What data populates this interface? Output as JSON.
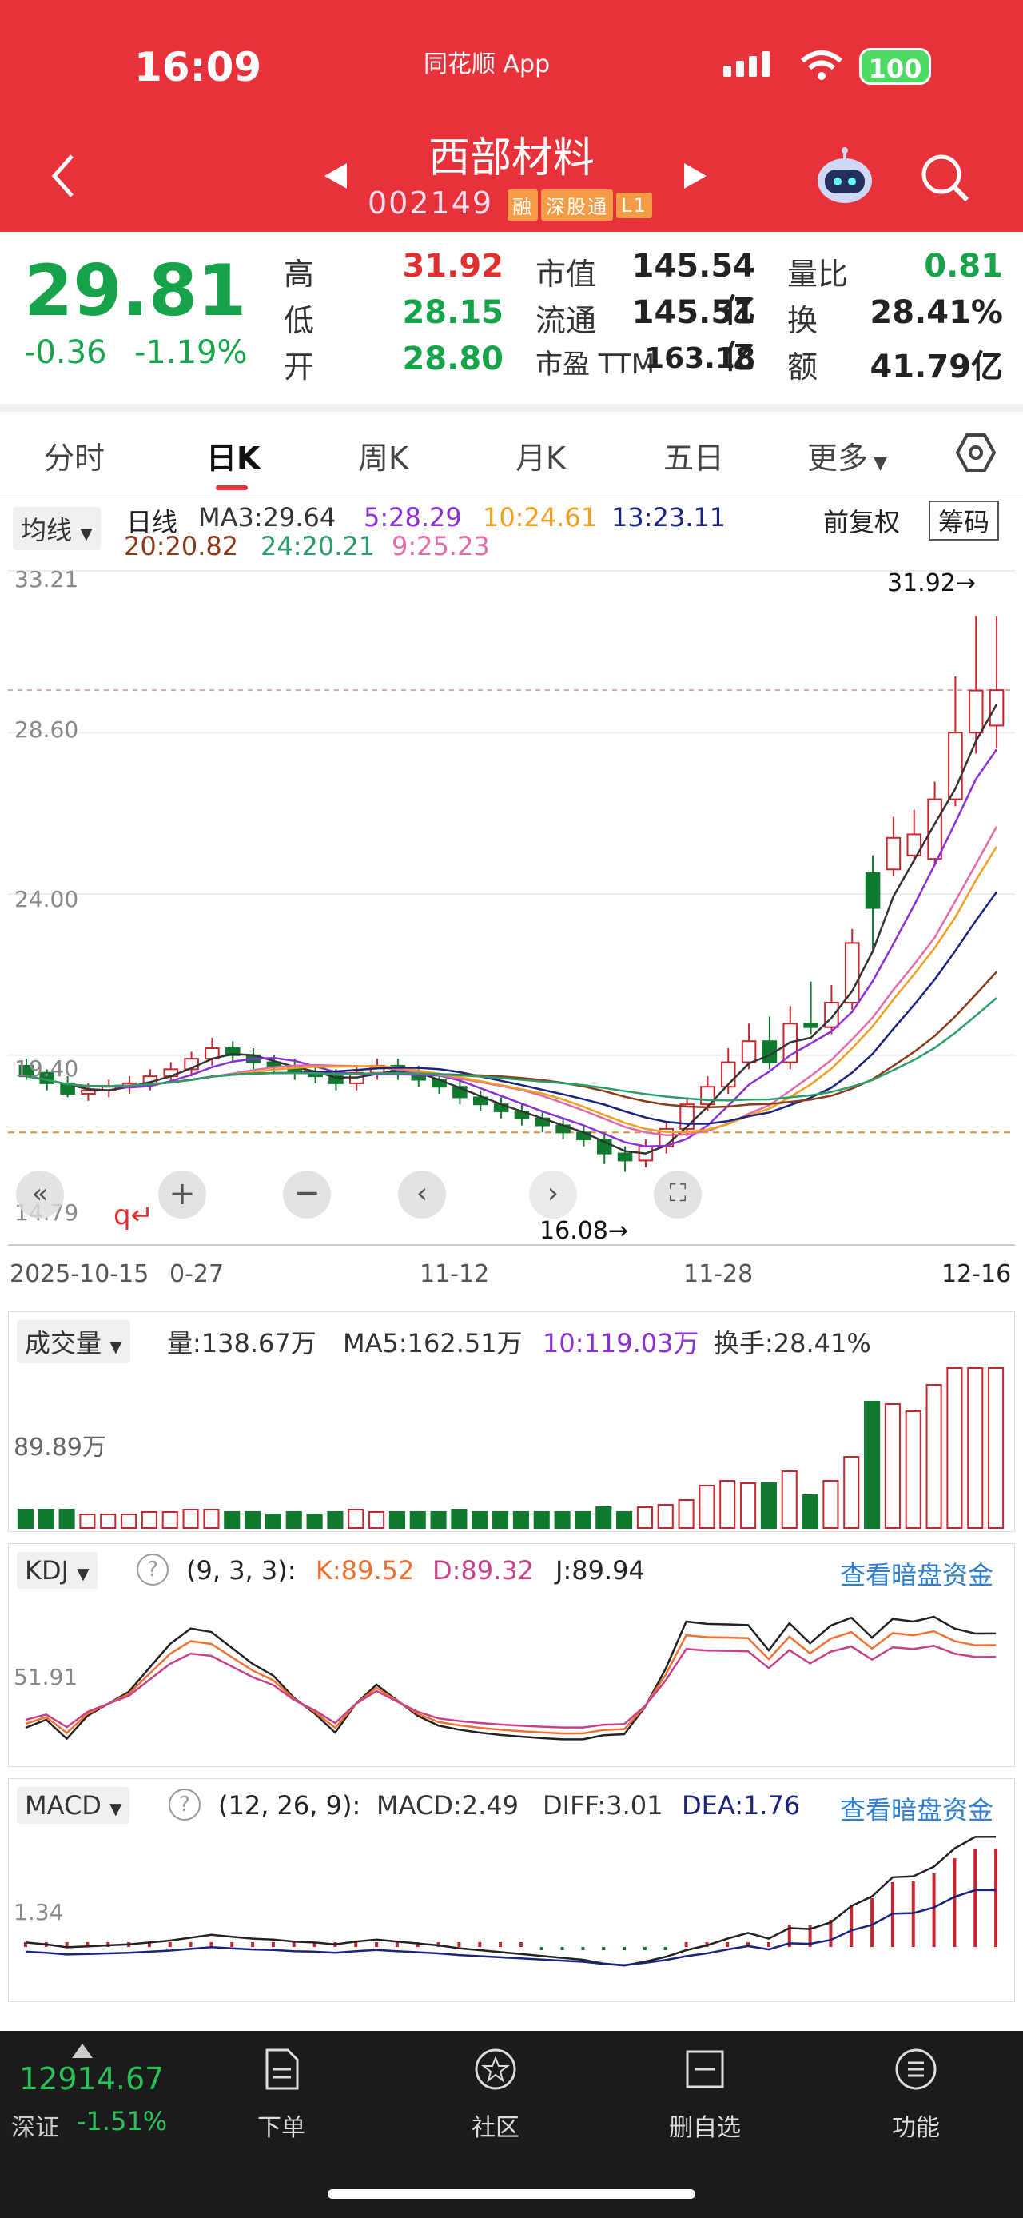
{
  "status_bar": {
    "time": "16:09",
    "app_name": "同花顺 App",
    "battery": "100"
  },
  "stock": {
    "name": "西部材料",
    "code": "002149",
    "tags": [
      "融",
      "深股通",
      "L1"
    ]
  },
  "quote": {
    "price": "29.81",
    "change": "-0.36",
    "change_pct": "-1.19%",
    "high_label": "高",
    "high": "31.92",
    "low_label": "低",
    "low": "28.15",
    "open_label": "开",
    "open": "28.80",
    "mktcap_label": "市值",
    "mktcap": "145.54亿",
    "float_label": "流通",
    "float": "145.51亿",
    "pe_label": "市盈 TTM",
    "pe": "163.18",
    "vr_label": "量比",
    "vr": "0.81",
    "turnover_label": "换",
    "turnover": "28.41%",
    "amount_label": "额",
    "amount": "41.79亿"
  },
  "tabs": [
    "分时",
    "日K",
    "周K",
    "月K",
    "五日",
    "更多"
  ],
  "kline": {
    "selector": "均线",
    "period": "日线",
    "ma": [
      {
        "label": "MA3:29.64",
        "color": "#333333"
      },
      {
        "label": "5:28.29",
        "color": "#8b2fd6"
      },
      {
        "label": "10:24.61",
        "color": "#f0a020"
      },
      {
        "label": "13:23.11",
        "color": "#1a237e"
      },
      {
        "label": "20:20.82",
        "color": "#8b3a1a"
      },
      {
        "label": "24:20.21",
        "color": "#2a9d6a"
      },
      {
        "label": "9:25.23",
        "color": "#e26aa8"
      }
    ],
    "adjust": "前复权",
    "chips": "筹码",
    "y_ticks": [
      "33.21",
      "28.60",
      "24.00",
      "19.40",
      "14.79"
    ],
    "high_mark": "31.92→",
    "low_mark": "16.08→",
    "x_ticks": [
      "2025-10-15",
      "0-27",
      "11-12",
      "11-28",
      "12-16"
    ]
  },
  "volume": {
    "selector": "成交量",
    "vol": "量:138.67万",
    "ma5": "MA5:162.51万",
    "ma10": "10:119.03万",
    "turnover": "换手:28.41%",
    "y_tick": "89.89万"
  },
  "kdj": {
    "selector": "KDJ",
    "params": "(9, 3, 3):",
    "k": "K:89.52",
    "d": "D:89.32",
    "j": "J:89.94",
    "link": "查看暗盘资金",
    "y_tick": "51.91"
  },
  "macd": {
    "selector": "MACD",
    "params": "(12, 26, 9):",
    "macd": "MACD:2.49",
    "diff": "DIFF:3.01",
    "dea": "DEA:1.76",
    "link": "查看暗盘资金",
    "y_tick": "1.34"
  },
  "bottom": {
    "index_value": "12914.67",
    "index_name": "深证",
    "index_change": "-1.51%",
    "items": [
      "下单",
      "社区",
      "删自选",
      "功能"
    ]
  },
  "chart_data": {
    "type": "candlestick",
    "dates_range": [
      "2025-10-15",
      "12-16"
    ],
    "ylim": [
      14.79,
      33.21
    ],
    "candles": [
      [
        19.1,
        18.8,
        19.3,
        18.7
      ],
      [
        18.9,
        18.6,
        19.0,
        18.4
      ],
      [
        18.6,
        18.3,
        18.8,
        18.2
      ],
      [
        18.3,
        18.4,
        18.6,
        18.1
      ],
      [
        18.4,
        18.5,
        18.7,
        18.2
      ],
      [
        18.5,
        18.6,
        18.8,
        18.3
      ],
      [
        18.6,
        18.8,
        19.0,
        18.4
      ],
      [
        18.8,
        19.0,
        19.2,
        18.6
      ],
      [
        19.0,
        19.3,
        19.5,
        18.8
      ],
      [
        19.3,
        19.6,
        19.9,
        19.1
      ],
      [
        19.6,
        19.4,
        19.8,
        19.2
      ],
      [
        19.4,
        19.2,
        19.6,
        19.0
      ],
      [
        19.2,
        19.1,
        19.4,
        18.9
      ],
      [
        19.1,
        18.9,
        19.3,
        18.7
      ],
      [
        18.9,
        18.8,
        19.1,
        18.6
      ],
      [
        18.8,
        18.6,
        19.0,
        18.4
      ],
      [
        18.6,
        18.9,
        19.1,
        18.4
      ],
      [
        18.9,
        19.1,
        19.3,
        18.7
      ],
      [
        19.1,
        18.9,
        19.3,
        18.7
      ],
      [
        18.9,
        18.7,
        19.1,
        18.5
      ],
      [
        18.7,
        18.5,
        18.9,
        18.3
      ],
      [
        18.5,
        18.2,
        18.7,
        18.0
      ],
      [
        18.2,
        18.0,
        18.4,
        17.8
      ],
      [
        18.0,
        17.8,
        18.2,
        17.6
      ],
      [
        17.8,
        17.6,
        18.0,
        17.4
      ],
      [
        17.6,
        17.4,
        17.8,
        17.2
      ],
      [
        17.4,
        17.2,
        17.6,
        17.0
      ],
      [
        17.2,
        17.0,
        17.4,
        16.8
      ],
      [
        17.0,
        16.6,
        17.2,
        16.3
      ],
      [
        16.6,
        16.4,
        16.8,
        16.08
      ],
      [
        16.4,
        16.8,
        17.0,
        16.2
      ],
      [
        16.8,
        17.3,
        17.5,
        16.6
      ],
      [
        17.3,
        18.0,
        18.2,
        17.1
      ],
      [
        18.0,
        18.5,
        18.8,
        17.8
      ],
      [
        18.5,
        19.2,
        19.6,
        18.3
      ],
      [
        19.2,
        19.8,
        20.3,
        19.0
      ],
      [
        19.8,
        19.2,
        20.5,
        19.0
      ],
      [
        19.2,
        20.3,
        20.8,
        19.0
      ],
      [
        20.3,
        20.2,
        21.5,
        20.0
      ],
      [
        20.2,
        20.9,
        21.4,
        20.0
      ],
      [
        20.9,
        22.6,
        23.0,
        20.7
      ],
      [
        24.6,
        23.6,
        25.1,
        22.4
      ],
      [
        24.7,
        25.6,
        26.2,
        24.5
      ],
      [
        25.1,
        25.7,
        26.4,
        24.9
      ],
      [
        25.0,
        26.7,
        27.2,
        24.8
      ],
      [
        26.7,
        28.6,
        30.2,
        26.5
      ],
      [
        28.6,
        29.8,
        31.92,
        28.0
      ],
      [
        28.8,
        29.81,
        31.92,
        28.15
      ]
    ]
  }
}
